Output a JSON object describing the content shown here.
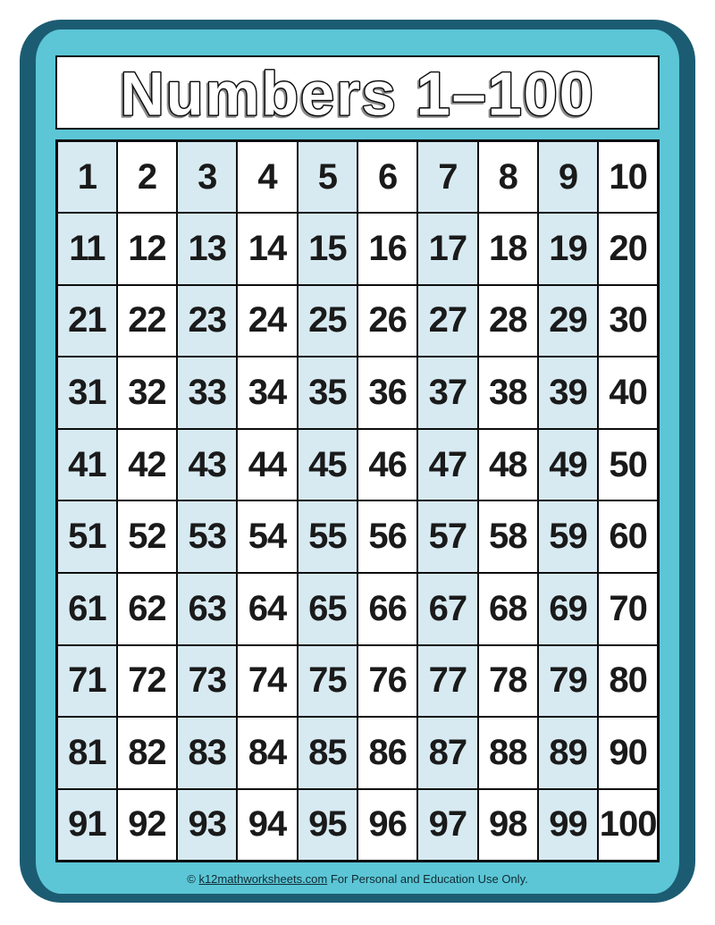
{
  "poster": {
    "title": "Numbers 1–100"
  },
  "grid": {
    "rows": [
      [
        1,
        2,
        3,
        4,
        5,
        6,
        7,
        8,
        9,
        10
      ],
      [
        11,
        12,
        13,
        14,
        15,
        16,
        17,
        18,
        19,
        20
      ],
      [
        21,
        22,
        23,
        24,
        25,
        26,
        27,
        28,
        29,
        30
      ],
      [
        31,
        32,
        33,
        34,
        35,
        36,
        37,
        38,
        39,
        40
      ],
      [
        41,
        42,
        43,
        44,
        45,
        46,
        47,
        48,
        49,
        50
      ],
      [
        51,
        52,
        53,
        54,
        55,
        56,
        57,
        58,
        59,
        60
      ],
      [
        61,
        62,
        63,
        64,
        65,
        66,
        67,
        68,
        69,
        70
      ],
      [
        71,
        72,
        73,
        74,
        75,
        76,
        77,
        78,
        79,
        80
      ],
      [
        81,
        82,
        83,
        84,
        85,
        86,
        87,
        88,
        89,
        90
      ],
      [
        91,
        92,
        93,
        94,
        95,
        96,
        97,
        98,
        99,
        100
      ]
    ]
  },
  "footer": {
    "copyright": "© ",
    "link_text": "k12mathworksheets.com",
    "suffix": " For Personal and Education Use Only."
  },
  "theme": {
    "page_bg": "#ffffff",
    "poster_border": "#1c5c72",
    "poster_fill": "#5cc6d6",
    "band_bg": "#ffffff",
    "grid_line": "#0d0d0d",
    "cell_alt": "#d7eaf2",
    "cell_plain": "#ffffff",
    "number_color": "#1a1a1a",
    "title_fill": "#ffffff",
    "title_outline": "#0a0a0a",
    "footer_text": "#112b33"
  }
}
